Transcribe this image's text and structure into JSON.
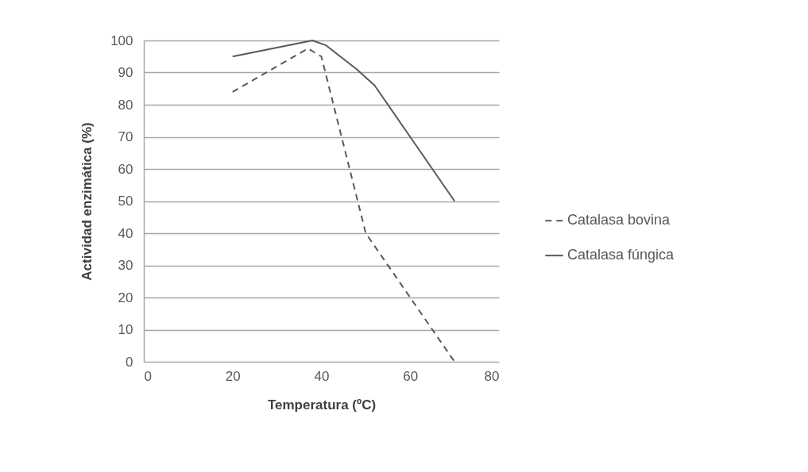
{
  "chart_data": {
    "type": "line",
    "xlabel": "Temperatura (ºC)",
    "ylabel": "Actividad enzimática (%)",
    "series": [
      {
        "name": "Catalasa bovina",
        "color": "#595959",
        "line_style": "dashed",
        "x": [
          20,
          37,
          40,
          50,
          60,
          70
        ],
        "values": [
          84,
          97.5,
          95,
          40,
          20,
          0
        ]
      },
      {
        "name": "Catalasa fúngica",
        "color": "#595959",
        "line_style": "solid",
        "x": [
          20,
          38,
          41,
          48,
          52,
          60,
          70
        ],
        "values": [
          95,
          100,
          98.5,
          91,
          86,
          70,
          50
        ]
      }
    ],
    "xlim": [
      0,
      80
    ],
    "ylim": [
      0,
      100
    ],
    "xticks": [
      0,
      20,
      40,
      60,
      80
    ],
    "yticks": [
      0,
      10,
      20,
      30,
      40,
      50,
      60,
      70,
      80,
      90,
      100
    ],
    "grid": "y",
    "legend": "right"
  }
}
